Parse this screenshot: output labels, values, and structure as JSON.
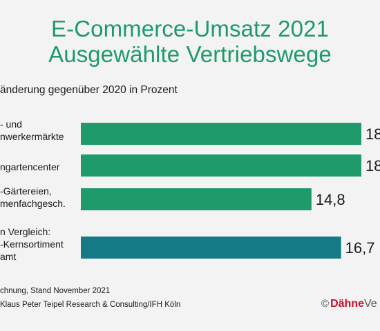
{
  "title_line1": "E-Commerce-Umsatz 2021",
  "title_line2": "Ausgewählte Vertriebswege",
  "subtitle": "änderung gegenüber 2020 in Prozent",
  "category_labels": [
    "- und\nnwerkermärkte",
    "ngartencenter",
    "-Gärtereien,\nmenfachgesch.",
    "n Vergleich:\n-Kernsortiment\namt"
  ],
  "footnote_line1": "chnung, Stand November 2021",
  "footnote_line2": "Klaus Peter Teipel Research & Consulting/IFH Köln",
  "logo": {
    "copyright": "©",
    "brand": "Dähne",
    "rest": "Ve"
  },
  "colors": {
    "green": "#1e9a6b",
    "teal": "#137a86",
    "title": "#1e9a6b"
  },
  "chart_data": {
    "type": "bar",
    "orientation": "horizontal",
    "title": "E-Commerce-Umsatz 2021 Ausgewählte Vertriebswege",
    "subtitle": "änderung gegenüber 2020 in Prozent",
    "xlim": [
      0,
      20
    ],
    "grid": false,
    "categories": [
      "- und nwerkermärkte",
      "ngartencenter",
      "-Gärtereien, menfachgesch.",
      "n Vergleich: -Kernsortiment amt"
    ],
    "values": [
      18.0,
      18.0,
      14.8,
      16.7
    ],
    "value_labels": [
      "18",
      "18,",
      "14,8",
      "16,7"
    ],
    "bar_colors": [
      "#1e9a6b",
      "#1e9a6b",
      "#1e9a6b",
      "#137a86"
    ]
  }
}
